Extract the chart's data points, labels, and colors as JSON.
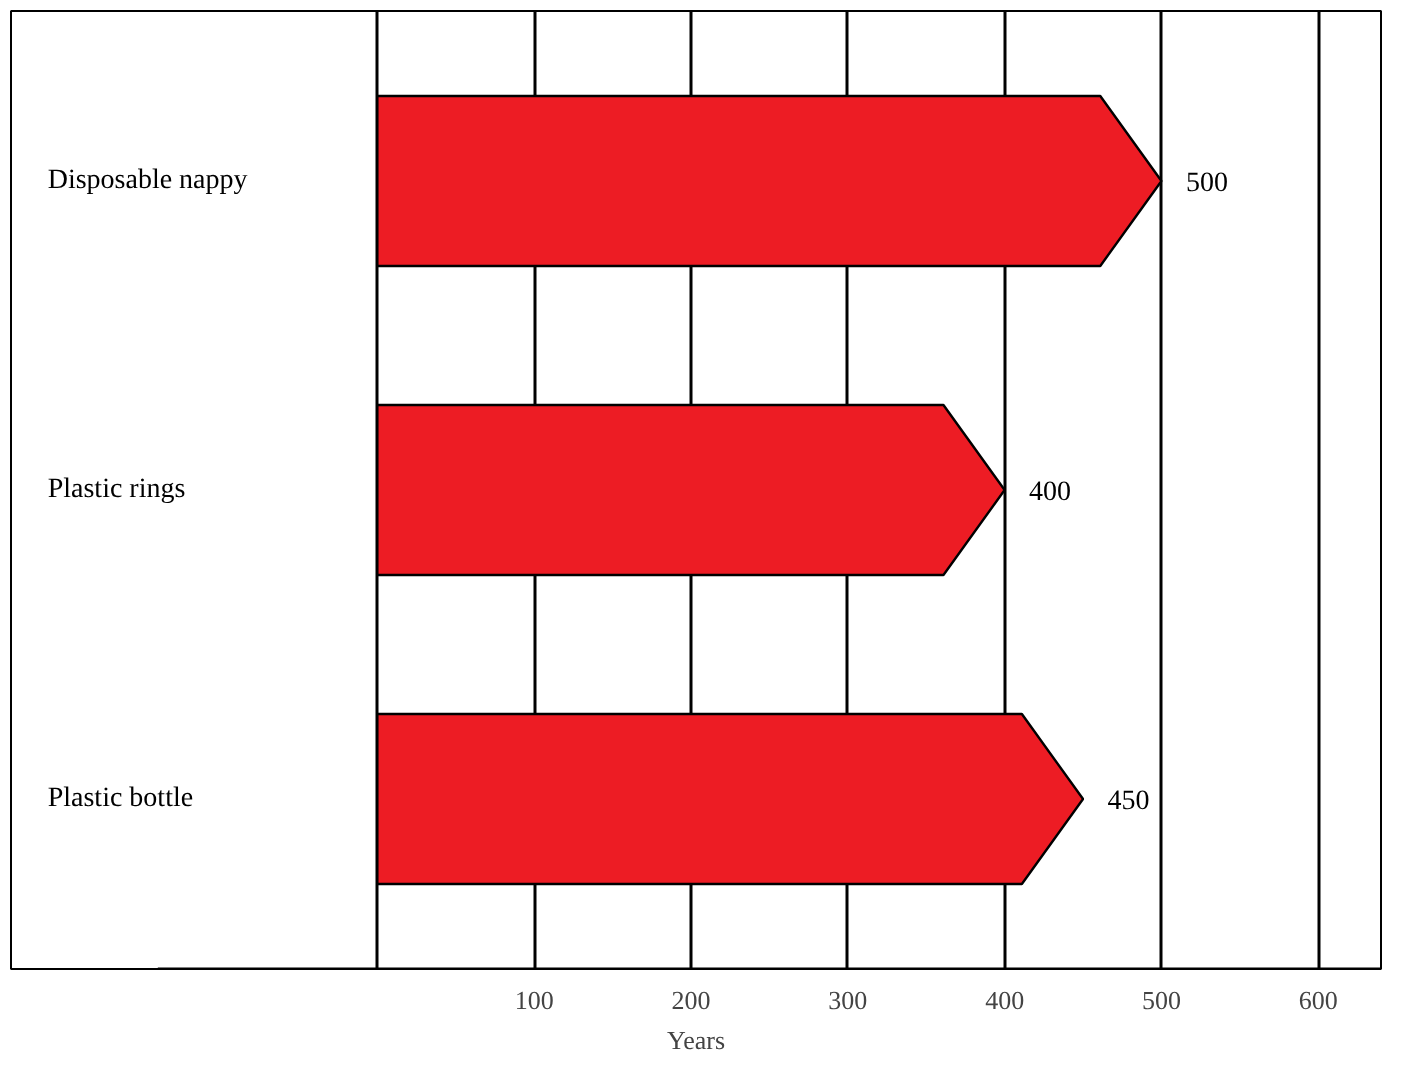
{
  "chart_data": {
    "type": "bar",
    "orientation": "horizontal",
    "xlabel": "Years",
    "categories": [
      "Disposable nappy",
      "Plastic rings",
      "Plastic bottle"
    ],
    "values": [
      500,
      400,
      450
    ],
    "color": "#ed1c24",
    "data_labels": true,
    "xlim": [
      -140,
      640
    ],
    "xticks": [
      {
        "value": 0,
        "label": null
      },
      100,
      200,
      300,
      400,
      500,
      600
    ],
    "grid": "x"
  }
}
